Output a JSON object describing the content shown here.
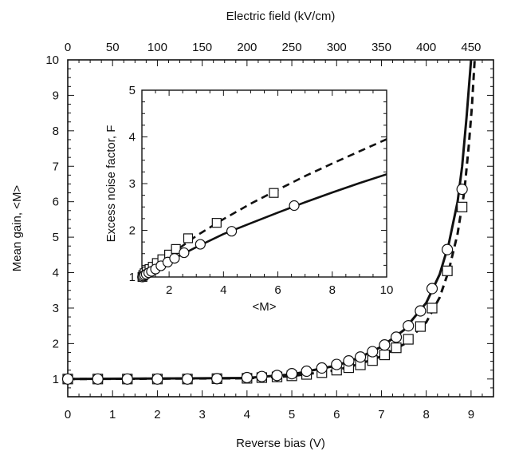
{
  "chart_data": [
    {
      "type": "line",
      "panel": "main",
      "xlabel": "Reverse bias (V)",
      "ylabel": "Mean gain, <M>",
      "x2label": "Electric field (kV/cm)",
      "xlim": [
        0,
        9.5
      ],
      "ylim": [
        0.5,
        10
      ],
      "x2lim": [
        0,
        475
      ],
      "xticks": [
        "0",
        "1",
        "2",
        "3",
        "4",
        "5",
        "6",
        "7",
        "8",
        "9"
      ],
      "yticks": [
        "1",
        "2",
        "3",
        "4",
        "5",
        "6",
        "7",
        "8",
        "9",
        "10"
      ],
      "x2ticks": [
        "0",
        "50",
        "100",
        "150",
        "200",
        "250",
        "300",
        "350",
        "400",
        "450"
      ],
      "grid": false,
      "series": [
        {
          "marker": "circle",
          "x": [
            0.0,
            0.67,
            1.33,
            2.0,
            2.67,
            3.33,
            4.0,
            4.33,
            4.67,
            5.0,
            5.33,
            5.67,
            6.0,
            6.27,
            6.53,
            6.8,
            7.07,
            7.33,
            7.6,
            7.87,
            8.13,
            8.47,
            8.8
          ],
          "y": [
            1.0,
            1.0,
            1.0,
            1.0,
            1.0,
            1.01,
            1.04,
            1.07,
            1.1,
            1.15,
            1.22,
            1.31,
            1.41,
            1.51,
            1.62,
            1.77,
            1.96,
            2.18,
            2.5,
            2.92,
            3.55,
            4.65,
            6.35
          ]
        },
        {
          "marker": "square",
          "x": [
            0.0,
            0.67,
            1.33,
            2.0,
            2.67,
            3.33,
            4.0,
            4.33,
            4.67,
            5.0,
            5.33,
            5.67,
            6.0,
            6.27,
            6.53,
            6.8,
            7.07,
            7.33,
            7.6,
            7.87,
            8.13,
            8.47,
            8.8
          ],
          "y": [
            1.0,
            1.0,
            1.0,
            1.0,
            1.0,
            1.01,
            1.02,
            1.04,
            1.06,
            1.09,
            1.13,
            1.18,
            1.25,
            1.32,
            1.4,
            1.52,
            1.68,
            1.88,
            2.12,
            2.48,
            3.0,
            4.05,
            5.85
          ]
        },
        {
          "style": "solid",
          "x": [
            0,
            4,
            5,
            6,
            6.5,
            7,
            7.5,
            8,
            8.3,
            8.5,
            8.7,
            8.8,
            8.9,
            8.95,
            9.0
          ],
          "y": [
            1.0,
            1.03,
            1.13,
            1.38,
            1.6,
            1.91,
            2.38,
            3.15,
            3.95,
            4.8,
            6.0,
            7.0,
            8.4,
            9.2,
            10.0
          ]
        },
        {
          "style": "dashed",
          "x": [
            0,
            4,
            5,
            6,
            6.5,
            7,
            7.5,
            8,
            8.3,
            8.5,
            8.7,
            8.85,
            8.95,
            9.02,
            9.08
          ],
          "y": [
            1.0,
            1.02,
            1.08,
            1.25,
            1.42,
            1.64,
            1.98,
            2.6,
            3.3,
            4.05,
            5.1,
            6.3,
            7.6,
            8.7,
            10.0
          ]
        }
      ]
    },
    {
      "type": "line",
      "panel": "inset",
      "xlabel": "<M>",
      "ylabel": "Excess noise factor, F",
      "xlim": [
        1,
        10
      ],
      "ylim": [
        1,
        5
      ],
      "xticks": [
        "2",
        "4",
        "6",
        "8",
        "10"
      ],
      "yticks": [
        "1",
        "2",
        "3",
        "4",
        "5"
      ],
      "grid": false,
      "series": [
        {
          "marker": "circle",
          "x": [
            1.02,
            1.05,
            1.1,
            1.16,
            1.25,
            1.35,
            1.5,
            1.7,
            1.95,
            2.2,
            2.55,
            3.15,
            4.3,
            6.6
          ],
          "y": [
            1.0,
            1.02,
            1.04,
            1.06,
            1.09,
            1.12,
            1.17,
            1.24,
            1.32,
            1.4,
            1.52,
            1.7,
            1.98,
            2.53
          ]
        },
        {
          "marker": "square",
          "x": [
            1.02,
            1.05,
            1.1,
            1.18,
            1.28,
            1.4,
            1.55,
            1.75,
            2.0,
            2.25,
            2.7,
            3.75,
            5.85
          ],
          "y": [
            1.0,
            1.04,
            1.08,
            1.12,
            1.17,
            1.22,
            1.3,
            1.38,
            1.48,
            1.6,
            1.83,
            2.16,
            2.8
          ]
        },
        {
          "style": "solid",
          "x": [
            1,
            1.5,
            2,
            3,
            4,
            5,
            6,
            7,
            8,
            9,
            10
          ],
          "y": [
            1.0,
            1.17,
            1.34,
            1.64,
            1.92,
            2.15,
            2.38,
            2.6,
            2.81,
            3.01,
            3.2
          ]
        },
        {
          "style": "dashed",
          "x": [
            1,
            1.5,
            2,
            3,
            4,
            5,
            6,
            7,
            8,
            9,
            10
          ],
          "y": [
            1.0,
            1.24,
            1.46,
            1.88,
            2.24,
            2.57,
            2.87,
            3.16,
            3.43,
            3.69,
            3.95
          ]
        }
      ]
    }
  ]
}
